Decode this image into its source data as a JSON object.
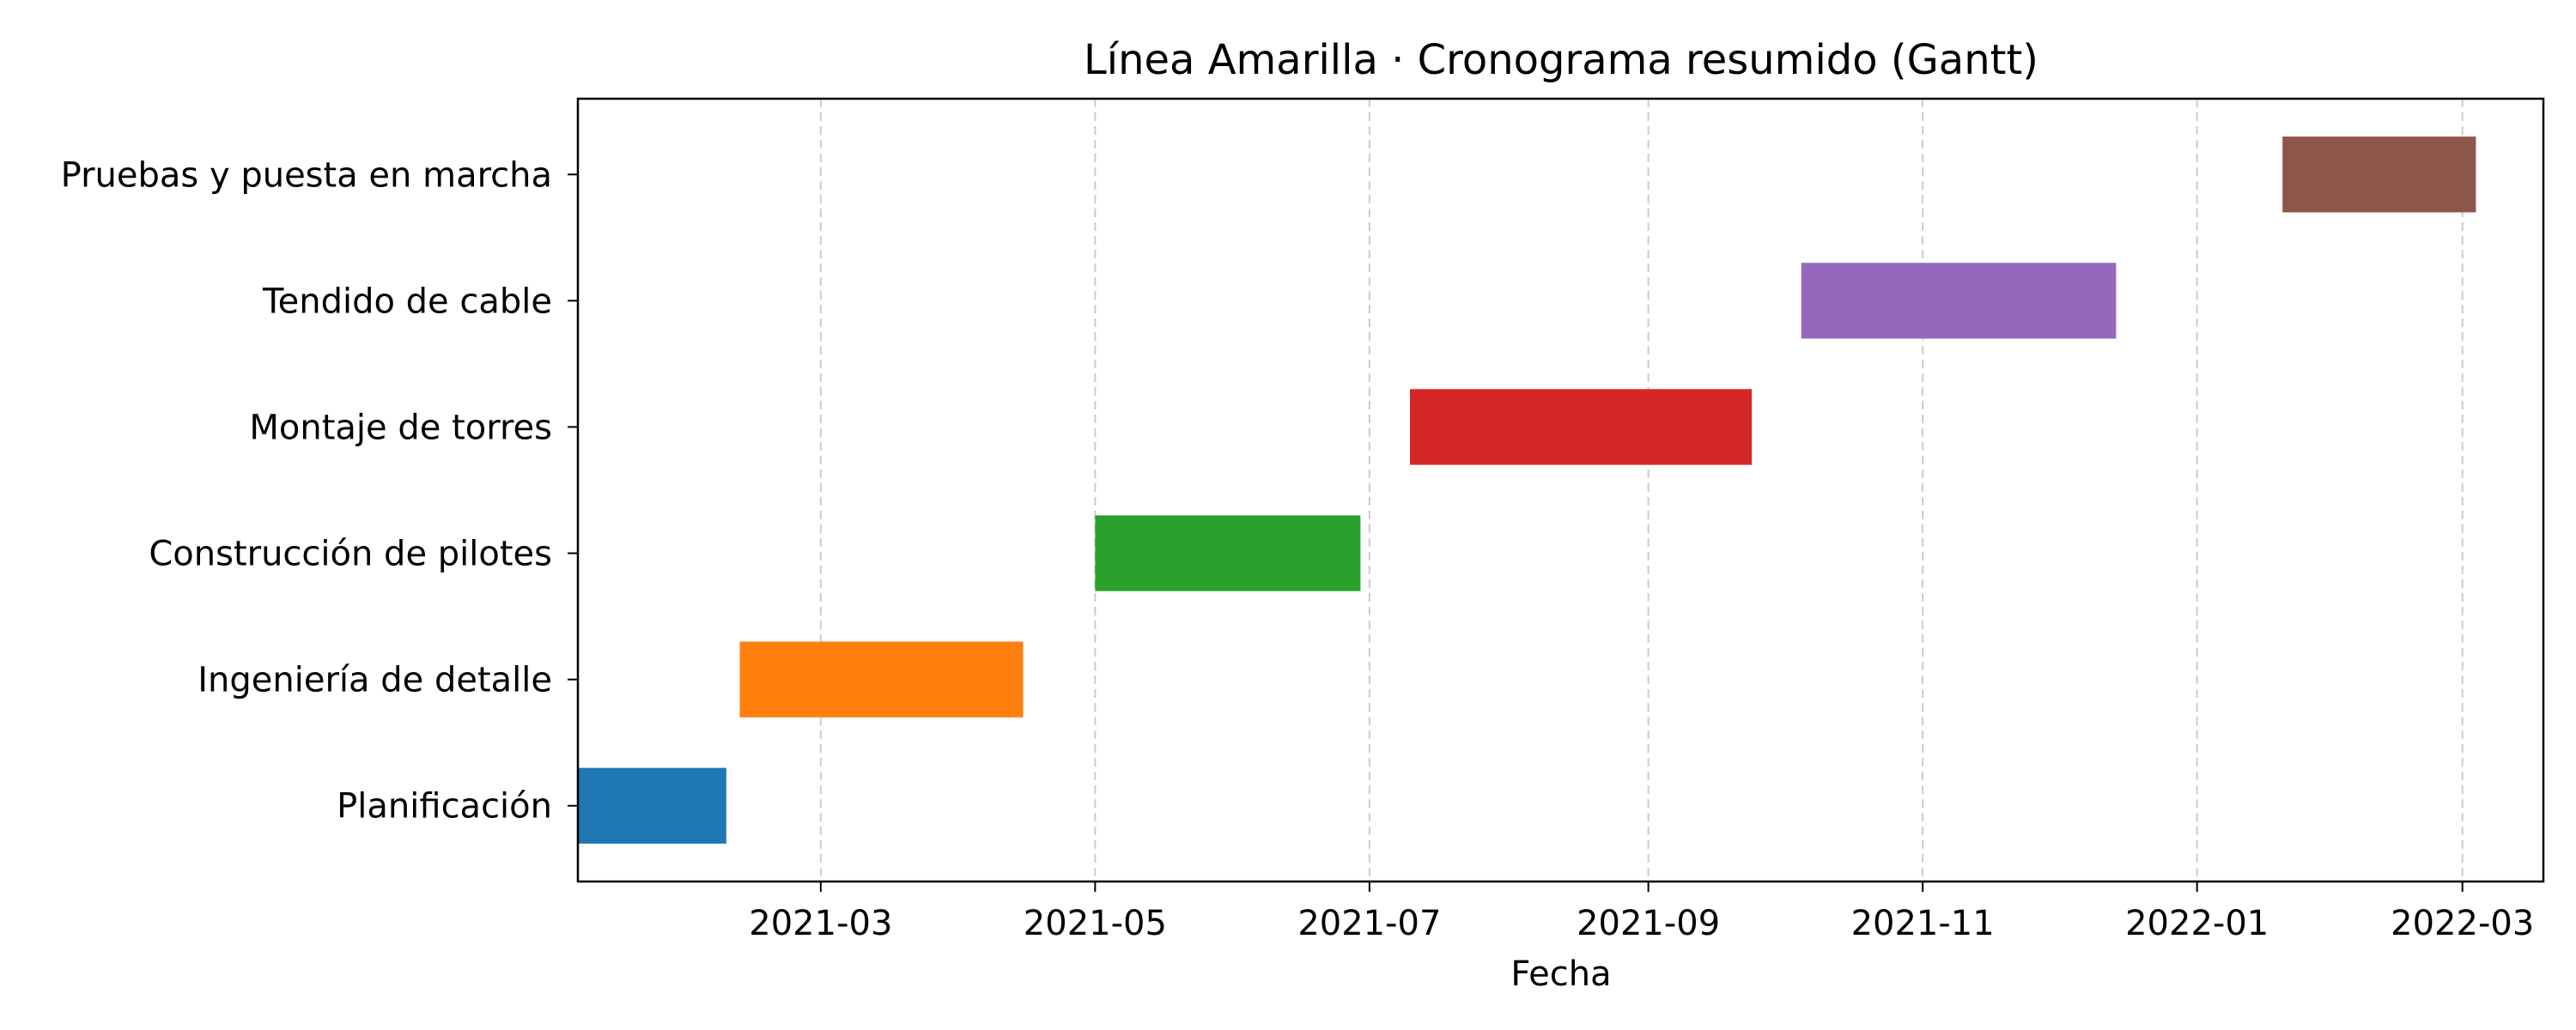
{
  "chart_data": {
    "type": "bar",
    "orientation": "horizontal",
    "title": "Línea Amarilla · Cronograma resumido (Gantt)",
    "xlabel": "Fecha",
    "ylabel": "",
    "xlim": [
      "2021-01-06",
      "2022-03-19"
    ],
    "x_ticks": [
      "2021-03",
      "2021-05",
      "2021-07",
      "2021-09",
      "2021-11",
      "2022-01",
      "2022-03"
    ],
    "x_tick_dates": [
      "2021-03-01",
      "2021-05-01",
      "2021-07-01",
      "2021-09-01",
      "2021-11-01",
      "2022-01-01",
      "2022-03-01"
    ],
    "grid": "x-dashed",
    "tasks": [
      {
        "label": "Planificación",
        "start": "2021-01-06",
        "end": "2021-02-08",
        "color": "#1f77b4"
      },
      {
        "label": "Ingeniería de detalle",
        "start": "2021-02-11",
        "end": "2021-04-15",
        "color": "#ff7f0e"
      },
      {
        "label": "Construcción de pilotes",
        "start": "2021-05-01",
        "end": "2021-06-29",
        "color": "#2ca02c"
      },
      {
        "label": "Montaje de torres",
        "start": "2021-07-10",
        "end": "2021-09-24",
        "color": "#d62728"
      },
      {
        "label": "Tendido de cable",
        "start": "2021-10-05",
        "end": "2021-12-14",
        "color": "#9467bd"
      },
      {
        "label": "Pruebas y puesta en marcha",
        "start": "2022-01-20",
        "end": "2022-03-04",
        "color": "#8c564b"
      }
    ]
  }
}
